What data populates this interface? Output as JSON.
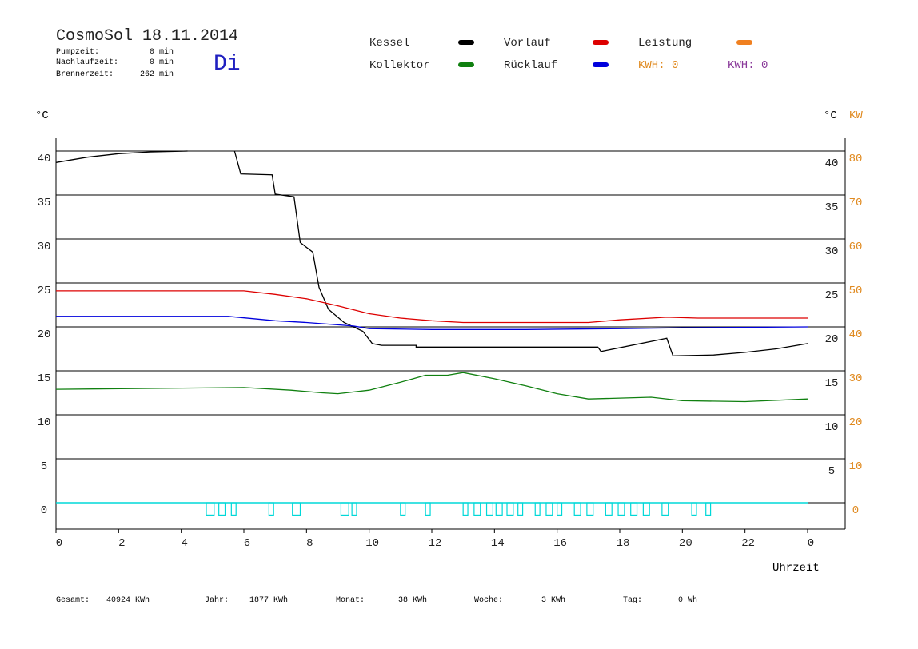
{
  "header": {
    "title": "CosmoSol 18.11.2014",
    "day": "Di",
    "stats": [
      {
        "label": "Pumpzeit:",
        "value": "0 min"
      },
      {
        "label": "Nachlaufzeit:",
        "value": "0 min"
      },
      {
        "label": "Brennerzeit:",
        "value": "262 min"
      }
    ],
    "kwh": [
      {
        "label": "KWH: 0",
        "color": "#e08a20"
      },
      {
        "label": "KWH: 0",
        "color": "#8a3a9a"
      }
    ]
  },
  "chart_data": {
    "type": "line",
    "y_unit": "°C",
    "y2_unit_left": "°C",
    "y2_unit": "KW",
    "x_label": "Uhrzeit",
    "xlim": [
      0,
      25.2
    ],
    "xticks": [
      0,
      2,
      4,
      6,
      8,
      10,
      12,
      14,
      16,
      18,
      20,
      22,
      {
        "value": 24,
        "label": "0"
      }
    ],
    "ylim": [
      -3,
      41.45
    ],
    "yticks": [
      0,
      5,
      10,
      15,
      20,
      25,
      30,
      35,
      40
    ],
    "y_right_ticks": [
      5,
      10,
      15,
      20,
      25,
      30,
      35,
      40
    ],
    "y2lim": [
      -6,
      82.9
    ],
    "y2ticks": [
      0,
      10,
      20,
      30,
      40,
      50,
      60,
      70,
      80
    ],
    "grid": true,
    "series": [
      {
        "name": "Kessel",
        "color": "#000000",
        "x": [
          0,
          1,
          2,
          3,
          4.2,
          4.3,
          5.7,
          5.9,
          6.9,
          7.0,
          7.6,
          7.8,
          8.2,
          8.4,
          8.7,
          9.2,
          9.8,
          10.1,
          10.4,
          11.5,
          11.5,
          17.3,
          17.4,
          19.5,
          19.7,
          21.0,
          22,
          23,
          24
        ],
        "values": [
          38.7,
          39.3,
          39.7,
          39.9,
          40,
          null,
          40,
          37.4,
          37.3,
          35.1,
          34.8,
          29.6,
          28.5,
          24.5,
          22,
          20.5,
          19.5,
          18.1,
          17.9,
          17.9,
          17.7,
          17.7,
          17.2,
          18.7,
          16.7,
          16.8,
          17.1,
          17.5,
          18.1
        ]
      },
      {
        "name": "Vorlauf",
        "color": "#dd0000",
        "x": [
          0,
          6,
          7,
          8,
          9,
          10,
          11,
          12,
          13,
          15,
          17,
          18,
          19.5,
          20.5,
          24
        ],
        "values": [
          24.1,
          24.1,
          23.7,
          23.2,
          22.4,
          21.5,
          21,
          20.7,
          20.5,
          20.5,
          20.5,
          20.8,
          21.1,
          21,
          21
        ]
      },
      {
        "name": "Leistung",
        "color": "#f08020",
        "x": [],
        "values": []
      },
      {
        "name": "Kollektor",
        "color": "#108010",
        "x": [
          0,
          3,
          6,
          7.5,
          8.5,
          9,
          10,
          11,
          11.8,
          12.5,
          13,
          14,
          15,
          16,
          17,
          19,
          20,
          22,
          24
        ],
        "values": [
          12.9,
          13,
          13.1,
          12.8,
          12.5,
          12.4,
          12.8,
          13.7,
          14.5,
          14.5,
          14.8,
          14.1,
          13.3,
          12.4,
          11.8,
          12.0,
          11.6,
          11.5,
          11.8
        ]
      },
      {
        "name": "Rücklauf",
        "color": "#0000dd",
        "x": [
          0,
          5.5,
          7,
          8,
          9.5,
          10,
          12,
          15,
          18,
          20,
          24
        ],
        "values": [
          21.2,
          21.2,
          20.7,
          20.5,
          20.1,
          19.8,
          19.7,
          19.7,
          19.8,
          19.9,
          20
        ]
      }
    ],
    "pump": {
      "color": "#00d8d8",
      "low": -1.4,
      "starts": [
        4.8,
        5.2,
        5.6,
        6.8,
        7.55,
        9.1,
        9.45,
        11.0,
        11.8,
        13.0,
        13.35,
        13.75,
        14.05,
        14.4,
        14.75,
        15.3,
        15.65,
        16.0,
        16.55,
        16.95,
        17.55,
        17.95,
        18.35,
        18.75,
        19.35,
        20.3,
        20.75
      ],
      "ends": [
        5.05,
        5.4,
        5.75,
        6.95,
        7.8,
        9.35,
        9.6,
        11.15,
        11.95,
        13.15,
        13.55,
        13.95,
        14.25,
        14.6,
        14.9,
        15.45,
        15.85,
        16.15,
        16.75,
        17.15,
        17.75,
        18.15,
        18.55,
        18.95,
        19.55,
        20.45,
        20.9
      ]
    }
  },
  "footer": [
    {
      "label": "Gesamt:",
      "value": "40924 KWh"
    },
    {
      "label": "Jahr:",
      "value": "1877 KWh"
    },
    {
      "label": "Monat:",
      "value": "38 KWh"
    },
    {
      "label": "Woche:",
      "value": "3 KWh"
    },
    {
      "label": "Tag:",
      "value": "0 Wh"
    }
  ]
}
